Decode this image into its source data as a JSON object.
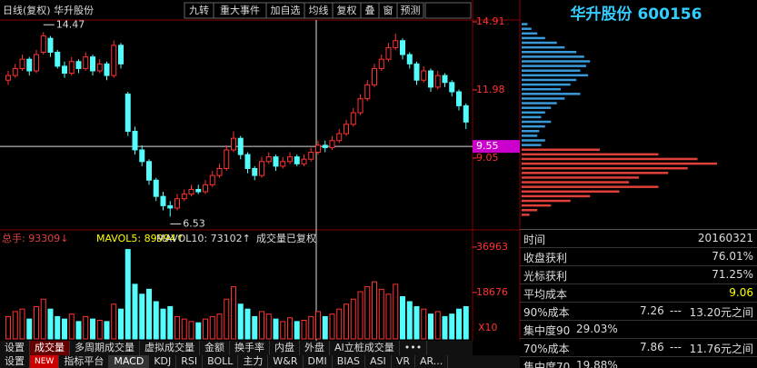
{
  "header": {
    "title": "日线(复权) 华升股份",
    "buttons": [
      "九转",
      "重大事件",
      "加自选",
      "均线",
      "复权",
      "叠",
      "窗",
      "预测"
    ],
    "stock": "华升股份 600156"
  },
  "chart_data": {
    "type": "candlestick",
    "candles": [
      [
        12.4,
        12.8,
        12.2,
        12.6
      ],
      [
        12.6,
        13.1,
        12.5,
        12.9
      ],
      [
        12.9,
        13.5,
        12.8,
        13.3
      ],
      [
        13.3,
        13.4,
        12.6,
        12.8
      ],
      [
        12.8,
        13.7,
        12.7,
        13.5
      ],
      [
        13.6,
        14.47,
        13.5,
        14.3
      ],
      [
        14.2,
        14.3,
        13.4,
        13.6
      ],
      [
        13.6,
        13.7,
        12.9,
        13.0
      ],
      [
        13.0,
        13.2,
        12.5,
        12.7
      ],
      [
        12.7,
        13.4,
        12.6,
        13.2
      ],
      [
        13.2,
        13.3,
        12.7,
        12.9
      ],
      [
        12.9,
        13.6,
        12.8,
        13.4
      ],
      [
        13.4,
        13.5,
        12.6,
        12.8
      ],
      [
        12.8,
        13.3,
        12.7,
        13.1
      ],
      [
        13.1,
        13.2,
        12.4,
        12.6
      ],
      [
        12.6,
        14.1,
        12.5,
        13.9
      ],
      [
        13.9,
        14.0,
        12.9,
        13.1
      ],
      [
        11.8,
        11.9,
        10.0,
        10.2
      ],
      [
        10.2,
        10.4,
        9.2,
        9.4
      ],
      [
        9.4,
        9.6,
        8.7,
        8.9
      ],
      [
        8.9,
        9.0,
        7.9,
        8.1
      ],
      [
        8.1,
        8.2,
        7.2,
        7.4
      ],
      [
        7.4,
        7.6,
        6.8,
        7.0
      ],
      [
        7.0,
        7.2,
        6.53,
        6.9
      ],
      [
        6.9,
        7.5,
        6.8,
        7.3
      ],
      [
        7.3,
        7.7,
        7.2,
        7.5
      ],
      [
        7.5,
        7.9,
        7.4,
        7.7
      ],
      [
        7.7,
        7.9,
        7.5,
        7.6
      ],
      [
        7.6,
        8.1,
        7.5,
        7.9
      ],
      [
        7.9,
        8.5,
        7.8,
        8.3
      ],
      [
        8.3,
        8.8,
        8.2,
        8.6
      ],
      [
        8.6,
        9.6,
        8.5,
        9.4
      ],
      [
        9.4,
        10.2,
        9.3,
        9.9
      ],
      [
        9.9,
        10.0,
        9.0,
        9.2
      ],
      [
        9.2,
        9.3,
        8.4,
        8.6
      ],
      [
        8.6,
        8.7,
        8.1,
        8.3
      ],
      [
        8.3,
        9.1,
        8.2,
        8.9
      ],
      [
        8.9,
        9.3,
        8.8,
        9.1
      ],
      [
        9.1,
        9.2,
        8.5,
        8.7
      ],
      [
        8.7,
        9.1,
        8.6,
        8.9
      ],
      [
        8.9,
        9.3,
        8.8,
        9.1
      ],
      [
        9.1,
        9.2,
        8.7,
        8.8
      ],
      [
        8.8,
        9.2,
        8.7,
        9.0
      ],
      [
        9.0,
        9.5,
        8.9,
        9.3
      ],
      [
        9.3,
        9.8,
        9.2,
        9.6
      ],
      [
        9.6,
        9.8,
        9.3,
        9.5
      ],
      [
        9.5,
        10.0,
        9.4,
        9.8
      ],
      [
        9.8,
        10.3,
        9.7,
        10.1
      ],
      [
        10.1,
        10.7,
        10.0,
        10.5
      ],
      [
        10.5,
        11.2,
        10.4,
        11.0
      ],
      [
        11.0,
        11.8,
        10.9,
        11.6
      ],
      [
        11.6,
        12.4,
        11.5,
        12.2
      ],
      [
        12.2,
        13.1,
        12.1,
        12.9
      ],
      [
        12.9,
        13.5,
        12.8,
        13.3
      ],
      [
        13.3,
        14.0,
        13.2,
        13.8
      ],
      [
        13.8,
        14.4,
        13.7,
        14.1
      ],
      [
        14.1,
        14.2,
        13.3,
        13.5
      ],
      [
        13.5,
        13.6,
        12.9,
        13.1
      ],
      [
        13.1,
        13.2,
        12.2,
        12.4
      ],
      [
        12.4,
        13.0,
        12.3,
        12.8
      ],
      [
        12.8,
        12.9,
        11.9,
        12.1
      ],
      [
        12.1,
        12.8,
        12.0,
        12.6
      ],
      [
        12.6,
        12.7,
        12.1,
        12.3
      ],
      [
        12.3,
        12.4,
        11.7,
        11.9
      ],
      [
        11.9,
        12.0,
        11.1,
        11.3
      ],
      [
        11.3,
        11.4,
        10.3,
        10.6
      ]
    ],
    "ylim": [
      5.96,
      14.91
    ],
    "yticks": [
      14.91,
      11.98,
      9.05
    ],
    "cursor_price": 9.55,
    "volume": {
      "values": [
        9000,
        11000,
        12000,
        8000,
        13000,
        16000,
        12000,
        9000,
        8000,
        10000,
        7000,
        9000,
        8000,
        7500,
        7000,
        14000,
        12000,
        36000,
        22000,
        18000,
        20000,
        15000,
        12000,
        13000,
        9000,
        8000,
        7000,
        6500,
        8000,
        9000,
        10000,
        16000,
        21000,
        14000,
        12000,
        9000,
        11000,
        10000,
        8000,
        7000,
        8500,
        7000,
        7500,
        9000,
        11000,
        9000,
        10000,
        12000,
        14000,
        16000,
        19000,
        21000,
        23000,
        20000,
        18000,
        22000,
        17000,
        15000,
        13000,
        12000,
        10000,
        11000,
        9000,
        10000,
        12000,
        13000
      ],
      "ylim": [
        0,
        42060
      ],
      "yticks": [
        36963,
        18676
      ],
      "unit": "X10",
      "legend": [
        "总手: 93309↓",
        "MAVOL5: 89994↑",
        "MAVOL10: 73102↑",
        "成交量已复权"
      ]
    },
    "chips": {
      "xlim": [
        0,
        100
      ],
      "prices": [
        14.8,
        14.6,
        14.4,
        14.2,
        14.0,
        13.8,
        13.6,
        13.4,
        13.2,
        13.0,
        12.8,
        12.6,
        12.4,
        12.2,
        12.0,
        11.8,
        11.6,
        11.4,
        11.2,
        11.0,
        10.8,
        10.6,
        10.4,
        10.2,
        10.0,
        9.8,
        9.6,
        9.4,
        9.2,
        9.0,
        8.8,
        8.6,
        8.4,
        8.2,
        8.0,
        7.8,
        7.6,
        7.4,
        7.2,
        7.0,
        6.8,
        6.6
      ],
      "values": [
        3,
        5,
        8,
        12,
        18,
        22,
        28,
        32,
        35,
        33,
        30,
        34,
        28,
        25,
        20,
        30,
        22,
        18,
        15,
        12,
        10,
        15,
        12,
        9,
        8,
        12,
        10,
        40,
        70,
        90,
        100,
        85,
        75,
        60,
        55,
        70,
        50,
        35,
        25,
        15,
        8,
        4
      ]
    }
  },
  "info": {
    "rows": [
      [
        "时间",
        "20160321"
      ],
      [
        "收盘获利",
        "76.01%"
      ],
      [
        "光标获利",
        "71.25%"
      ],
      [
        "平均成本",
        "9.06"
      ]
    ],
    "cost90": {
      "label": "90%成本",
      "low": "7.26",
      "sep": "---",
      "high": "13.20元之间"
    },
    "conc90": [
      "集中度90",
      "29.03%"
    ],
    "cost70": {
      "label": "70%成本",
      "low": "7.86",
      "sep": "---",
      "high": "11.76元之间"
    },
    "conc70": [
      "集中度70",
      "19.88%"
    ]
  },
  "tabs": {
    "row1": [
      "设置",
      "成交量",
      "多周期成交量",
      "虚拟成交量",
      "金额",
      "换手率",
      "内盘",
      "外盘",
      "AI立桩成交量",
      "•••"
    ],
    "row2": [
      "设置",
      "NEW",
      "指标平台",
      "MACD",
      "KDJ",
      "RSI",
      "BOLL",
      "主力",
      "W&R",
      "DMI",
      "BIAS",
      "ASI",
      "VR",
      "AR..."
    ]
  }
}
